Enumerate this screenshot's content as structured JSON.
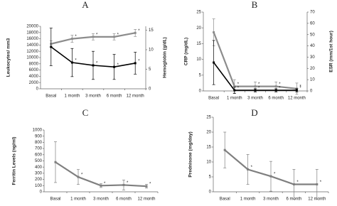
{
  "chart_data": [
    {
      "type": "line",
      "title": "A",
      "categories": [
        "Basal",
        "1 month",
        "3 month",
        "6 month",
        "12 month"
      ],
      "ylabel": "Leukocytes/ mm3",
      "y2label": "Hemoglobin (g/dL)",
      "ylim": [
        0,
        20000
      ],
      "yticks": [
        0,
        2000,
        4000,
        6000,
        8000,
        10000,
        12000,
        14000,
        16000,
        18000,
        20000
      ],
      "y2lim": [
        0,
        16
      ],
      "y2ticks": [
        0,
        5,
        10,
        15
      ],
      "significance_marker": "*",
      "series": [
        {
          "name": "Hemoglobin",
          "axis": "y2",
          "color": "#8c8c8c",
          "values": [
            11.5,
            12.8,
            13.3,
            13.3,
            14.3
          ],
          "errors": [
            0.8,
            0.9,
            0.8,
            0.8,
            0.9
          ],
          "significant": [
            1,
            2,
            3,
            4
          ]
        },
        {
          "name": "Leukocytes",
          "axis": "y",
          "color": "#000000",
          "values": [
            13400,
            8400,
            7500,
            7000,
            8200
          ],
          "errors": [
            6000,
            4500,
            4500,
            4000,
            3500
          ],
          "significant": [
            1,
            2,
            3,
            4
          ]
        }
      ]
    },
    {
      "type": "line",
      "title": "B",
      "categories": [
        "Basal",
        "1 month",
        "3 month",
        "6 month",
        "12 month"
      ],
      "ylabel": "CRP (mg/dL)",
      "y2label": "ESR (mm/1st hour)",
      "ylim": [
        0,
        25
      ],
      "yticks": [
        0,
        5,
        10,
        15,
        20,
        25
      ],
      "y2lim": [
        0,
        70
      ],
      "y2ticks": [
        0,
        10,
        20,
        30,
        40,
        50,
        60,
        70
      ],
      "significance_marker": "*",
      "series": [
        {
          "name": "ESR",
          "axis": "y2",
          "color": "#8c8c8c",
          "values": [
            52,
            4,
            4,
            4,
            2
          ],
          "errors": [
            12,
            6,
            4,
            4,
            5
          ],
          "significant": [
            1,
            2,
            3,
            4
          ]
        },
        {
          "name": "CRP",
          "axis": "y",
          "color": "#000000",
          "values": [
            9,
            0.2,
            0.2,
            0.2,
            0.2
          ],
          "errors": [
            7,
            1,
            0.5,
            0.5,
            0.5
          ],
          "significant": [
            1,
            2,
            3,
            4
          ]
        }
      ]
    },
    {
      "type": "line",
      "title": "C",
      "categories": [
        "Basal",
        "1 month",
        "3 month",
        "6 month",
        "12 month"
      ],
      "ylabel": "Ferritin Levels (ng/ml)",
      "ylim": [
        0,
        1000
      ],
      "yticks": [
        0,
        100,
        200,
        300,
        400,
        500,
        600,
        700,
        800,
        900,
        1000
      ],
      "significance_marker": "*",
      "series": [
        {
          "name": "Ferritin",
          "axis": "y",
          "color": "#7f7f7f",
          "values": [
            480,
            240,
            100,
            110,
            90
          ],
          "errors": [
            330,
            120,
            30,
            80,
            30
          ],
          "significant": [
            1,
            2,
            3,
            4
          ]
        }
      ]
    },
    {
      "type": "line",
      "title": "D",
      "categories": [
        "Basal",
        "1 month",
        "3 month",
        "6 month",
        "12 month"
      ],
      "ylabel": "Prednisone (mg/day)",
      "ylim": [
        0,
        25
      ],
      "yticks": [
        0,
        5,
        10,
        15,
        20,
        25
      ],
      "significance_marker": "*",
      "series": [
        {
          "name": "Prednisone",
          "axis": "y",
          "color": "#7f7f7f",
          "values": [
            14,
            7.5,
            5.2,
            2.5,
            2.5
          ],
          "errors": [
            6,
            5,
            5,
            5,
            5
          ],
          "significant": [
            1,
            2,
            3,
            4
          ]
        }
      ]
    }
  ]
}
